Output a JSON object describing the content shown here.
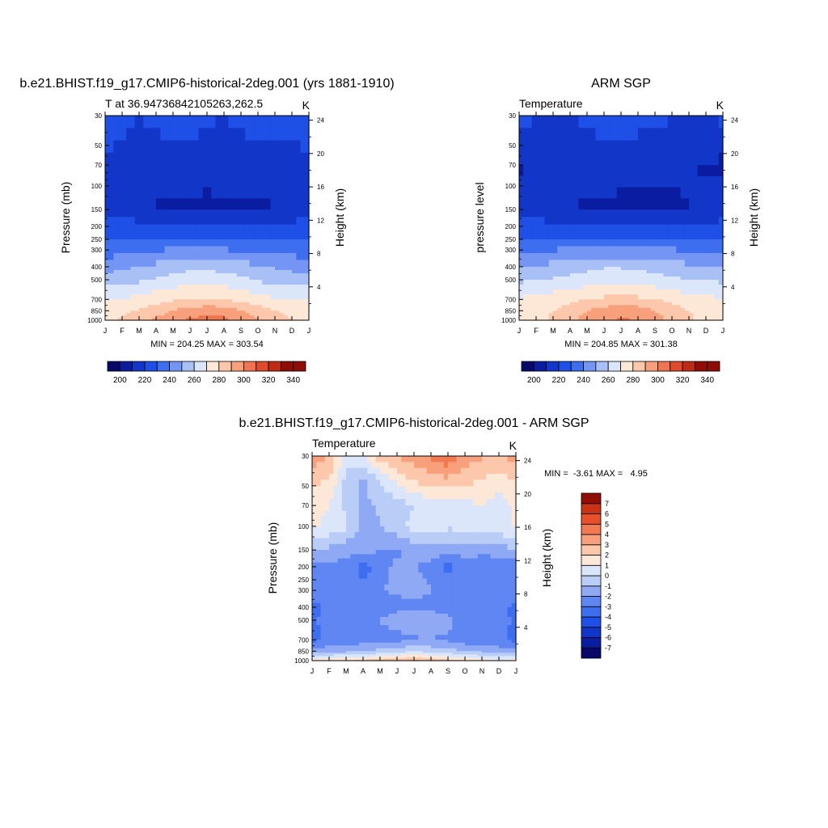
{
  "panels": [
    {
      "title": "b.e21.BHIST.f19_g17.CMIP6-historical-2deg.001 (yrs 1881-1910)",
      "left_string": "T at 36.94736842105263,262.5",
      "right_string": "K",
      "ylabel": "Pressure (mb)",
      "ylabel_right": "Height (km)",
      "stats": "MIN = 204.25 MAX = 303.54"
    },
    {
      "title": "ARM SGP",
      "left_string": "Temperature",
      "right_string": "K",
      "ylabel": "pressure level",
      "ylabel_right": "Height (km)",
      "stats": "MIN = 204.85 MAX = 301.38"
    },
    {
      "title": "b.e21.BHIST.f19_g17.CMIP6-historical-2deg.001 - ARM SGP",
      "left_string": "Temperature",
      "right_string": "K",
      "ylabel": "Pressure (mb)",
      "ylabel_right": "Height (km)",
      "stats": "MIN =  -3.61 MAX =   4.95"
    }
  ],
  "chart_data": [
    {
      "type": "heatmap",
      "name": "model",
      "x_ticks": [
        "J",
        "F",
        "M",
        "A",
        "M",
        "J",
        "J",
        "A",
        "S",
        "O",
        "N",
        "D",
        "J"
      ],
      "y_ticks": [
        30,
        50,
        70,
        100,
        150,
        200,
        250,
        300,
        400,
        500,
        700,
        850,
        1000
      ],
      "y_right_ticks": [
        4,
        8,
        12,
        16,
        20,
        24
      ],
      "y_log": true,
      "y_reversed": true,
      "levels": [
        30,
        70,
        150,
        250,
        400,
        500,
        700,
        850,
        1000
      ],
      "values": [
        [
          225,
          222,
          220,
          222,
          226,
          226,
          222,
          220,
          223,
          225,
          225,
          225,
          225
        ],
        [
          218,
          218,
          217,
          216,
          214,
          214,
          213,
          214,
          214,
          215,
          215,
          216,
          218
        ],
        [
          218,
          218,
          212,
          209,
          208,
          208,
          208,
          208,
          208,
          208,
          210,
          214,
          218
        ],
        [
          228,
          229,
          230,
          231,
          232,
          232,
          232,
          231,
          230,
          230,
          229,
          229,
          228
        ],
        [
          246,
          248,
          250,
          253,
          255,
          257,
          257,
          256,
          254,
          251,
          249,
          247,
          246
        ],
        [
          254,
          256,
          258,
          261,
          264,
          266,
          266,
          265,
          263,
          259,
          256,
          255,
          254
        ],
        [
          270,
          271,
          273,
          276,
          279,
          281,
          281,
          280,
          277,
          274,
          271,
          270,
          270
        ],
        [
          277,
          278,
          281,
          285,
          290,
          294,
          296,
          295,
          290,
          285,
          280,
          278,
          277
        ],
        [
          279,
          281,
          286,
          292,
          298,
          302,
          304,
          303,
          297,
          291,
          285,
          280,
          279
        ]
      ],
      "colorbar": {
        "min": 190,
        "max": 350,
        "step": 10,
        "labels": [
          200,
          220,
          240,
          260,
          280,
          300,
          320,
          340
        ]
      }
    },
    {
      "type": "heatmap",
      "name": "arm_sgp",
      "x_ticks": [
        "J",
        "F",
        "M",
        "A",
        "M",
        "J",
        "J",
        "A",
        "S",
        "O",
        "N",
        "D",
        "J"
      ],
      "y_ticks": [
        30,
        50,
        70,
        100,
        150,
        200,
        250,
        300,
        400,
        500,
        700,
        850,
        1000
      ],
      "y_right_ticks": [
        4,
        8,
        12,
        16,
        20,
        24
      ],
      "y_log": true,
      "y_reversed": true,
      "levels": [
        30,
        70,
        150,
        250,
        400,
        500,
        700,
        850,
        1000
      ],
      "values": [
        [
          222,
          221,
          220,
          220,
          222,
          225,
          226,
          224,
          222,
          221,
          220,
          221,
          222
        ],
        [
          208,
          212,
          212,
          215,
          214,
          214,
          213,
          213,
          212,
          212,
          211,
          209,
          208
        ],
        [
          214,
          214,
          212,
          211,
          208,
          208,
          208,
          207,
          208,
          208,
          210,
          212,
          214
        ],
        [
          231,
          231,
          232,
          232,
          233,
          233,
          233,
          233,
          232,
          232,
          231,
          231,
          231
        ],
        [
          249,
          251,
          253,
          255,
          257,
          259,
          259,
          258,
          256,
          254,
          252,
          250,
          249
        ],
        [
          258,
          259,
          261,
          263,
          265,
          267,
          267,
          266,
          264,
          262,
          260,
          259,
          258
        ],
        [
          271,
          273,
          275,
          277,
          280,
          282,
          283,
          282,
          280,
          277,
          274,
          272,
          271
        ],
        [
          275,
          276,
          280,
          285,
          290,
          294,
          296,
          295,
          290,
          285,
          280,
          276,
          275
        ],
        [
          276,
          277,
          282,
          288,
          294,
          299,
          301,
          300,
          294,
          288,
          282,
          277,
          276
        ]
      ],
      "colorbar": {
        "min": 190,
        "max": 350,
        "step": 10,
        "labels": [
          200,
          220,
          240,
          260,
          280,
          300,
          320,
          340
        ]
      }
    },
    {
      "type": "heatmap",
      "name": "difference",
      "x_ticks": [
        "J",
        "F",
        "M",
        "A",
        "M",
        "J",
        "J",
        "A",
        "S",
        "O",
        "N",
        "D",
        "J"
      ],
      "y_ticks": [
        30,
        50,
        70,
        100,
        150,
        200,
        250,
        300,
        400,
        500,
        700,
        850,
        1000
      ],
      "y_right_ticks": [
        4,
        8,
        12,
        16,
        20,
        24
      ],
      "y_log": true,
      "y_reversed": true,
      "levels": [
        30,
        45,
        70,
        100,
        150,
        200,
        300,
        400,
        500,
        700,
        850,
        950,
        1000
      ],
      "values": [
        [
          3.6,
          3.0,
          0.6,
          1.0,
          2.5,
          3.2,
          3.4,
          4.2,
          4.9,
          3.6,
          3.2,
          2.8,
          3.6
        ],
        [
          2.2,
          2.0,
          -0.4,
          -1.2,
          0.2,
          1.2,
          2.2,
          2.4,
          2.8,
          2.3,
          2.0,
          1.5,
          2.2
        ],
        [
          1.2,
          1.0,
          -0.2,
          -1.4,
          -0.8,
          -0.6,
          0.0,
          0.4,
          -0.1,
          0.6,
          1.0,
          0.4,
          1.2
        ],
        [
          1.2,
          0.8,
          0.2,
          -1.2,
          -1.1,
          -0.4,
          0.4,
          0.8,
          0.2,
          0.4,
          0.8,
          0.6,
          1.2
        ],
        [
          -1.0,
          -1.2,
          -1.8,
          -1.6,
          -2.0,
          -2.2,
          -1.6,
          -1.4,
          -1.6,
          -1.6,
          -1.8,
          -1.6,
          -1.0
        ],
        [
          -2.6,
          -2.4,
          -2.2,
          -3.6,
          -2.3,
          -1.8,
          -2.0,
          -2.2,
          -3.5,
          -2.2,
          -2.5,
          -2.5,
          -2.6
        ],
        [
          -2.2,
          -2.2,
          -2.0,
          -2.4,
          -2.0,
          -1.9,
          -1.8,
          -2.0,
          -2.3,
          -2.0,
          -2.2,
          -2.0,
          -2.2
        ],
        [
          -3.4,
          -2.8,
          -2.5,
          -2.4,
          -2.5,
          -2.2,
          -2.2,
          -2.1,
          -2.5,
          -3.0,
          -2.6,
          -2.6,
          -3.4
        ],
        [
          -3.2,
          -2.6,
          -2.4,
          -2.2,
          -1.9,
          -1.6,
          -1.4,
          -1.6,
          -1.6,
          -2.6,
          -2.6,
          -2.6,
          -3.2
        ],
        [
          -3.4,
          -2.6,
          -2.6,
          -2.4,
          -2.5,
          -2.3,
          -2.1,
          -2.0,
          -2.2,
          -2.6,
          -2.6,
          -2.6,
          -3.4
        ],
        [
          -1.6,
          -1.4,
          -1.3,
          -1.2,
          -0.6,
          -0.4,
          -0.2,
          -0.4,
          -0.6,
          -1.0,
          -1.2,
          -1.6,
          -1.6
        ],
        [
          0.6,
          0.8,
          1.0,
          1.2,
          1.4,
          1.6,
          2.2,
          1.6,
          1.2,
          1.0,
          0.6,
          0.5,
          0.6
        ],
        [
          1.4,
          1.6,
          1.8,
          2.4,
          2.8,
          3.0,
          3.2,
          2.8,
          2.4,
          2.0,
          1.6,
          1.2,
          1.4
        ]
      ],
      "colorbar": {
        "edges": [
          -8,
          -7,
          -6,
          -5,
          -4,
          -3,
          -2,
          -1,
          0,
          1,
          2,
          3,
          4,
          5,
          6,
          7,
          8
        ],
        "labels": [
          -7,
          -6,
          -5,
          -4,
          -3,
          -2,
          -1,
          0,
          1,
          2,
          3,
          4,
          5,
          6,
          7
        ]
      }
    }
  ],
  "colors": {
    "temperature_palette": [
      "#08086b",
      "#0a1da0",
      "#1236c8",
      "#1e4fe6",
      "#3e6ef0",
      "#7495f4",
      "#a9c0f6",
      "#dbe6fb",
      "#fde8d8",
      "#fcc7aa",
      "#f8a07c",
      "#ee7550",
      "#de4a2a",
      "#be2a12",
      "#8f0d05"
    ],
    "difference_palette": [
      "#08086b",
      "#0a1da0",
      "#1236c8",
      "#1e4fe6",
      "#3e6ef0",
      "#5f86f2",
      "#8fa9f4",
      "#b9cdf7",
      "#dbe6fb",
      "#fde8d8",
      "#fcc7aa",
      "#f8a07c",
      "#f27a52",
      "#e8502c",
      "#c93216",
      "#8f0d05"
    ]
  }
}
